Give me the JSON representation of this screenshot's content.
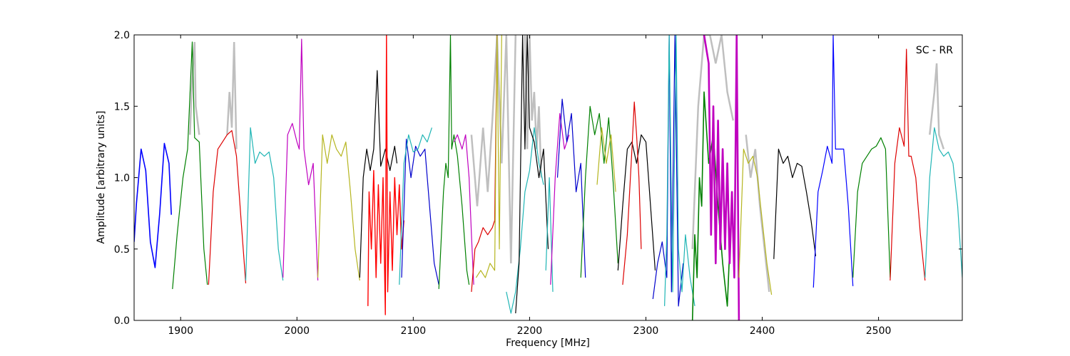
{
  "chart_data": {
    "type": "line",
    "title": "",
    "xlabel": "Frequency [MHz]",
    "ylabel": "Amplitude [arbitrary units]",
    "xlim": [
      1860,
      2572
    ],
    "ylim": [
      0,
      2.0
    ],
    "xticks": [
      1900,
      2000,
      2100,
      2200,
      2300,
      2400,
      2500
    ],
    "yticks": [
      0.0,
      0.5,
      1.0,
      1.5,
      2.0
    ],
    "xtick_labels": [
      "1900",
      "2000",
      "2100",
      "2200",
      "2300",
      "2400",
      "2500"
    ],
    "ytick_labels": [
      "0.0",
      "0.5",
      "1.0",
      "1.5",
      "2.0"
    ],
    "annotation": "SC - RR",
    "grid": false,
    "legend": "none",
    "reference_color": "#bfbfbf",
    "series": [
      {
        "color": "#0000ff",
        "lw": 1.6,
        "x": [
          1860,
          1862,
          1866,
          1870,
          1874,
          1878,
          1882,
          1886,
          1890,
          1892
        ],
        "y": [
          0.55,
          0.82,
          1.2,
          1.05,
          0.55,
          0.37,
          0.75,
          1.24,
          1.1,
          0.74
        ]
      },
      {
        "color": "#008000",
        "x": [
          1893,
          1897,
          1902,
          1906,
          1910,
          1912,
          1916,
          1920,
          1923
        ],
        "y": [
          0.22,
          0.6,
          1.0,
          1.2,
          1.95,
          1.28,
          1.25,
          0.5,
          0.25
        ]
      },
      {
        "color": "#dd0000",
        "x": [
          1924,
          1928,
          1932,
          1936,
          1940,
          1944,
          1948,
          1952,
          1956
        ],
        "y": [
          0.25,
          0.9,
          1.2,
          1.25,
          1.3,
          1.33,
          1.15,
          0.7,
          0.26
        ]
      },
      {
        "color": "#1fb5b5",
        "x": [
          1956,
          1960,
          1964,
          1968,
          1972,
          1976,
          1980,
          1984,
          1988
        ],
        "y": [
          0.28,
          1.35,
          1.1,
          1.18,
          1.15,
          1.18,
          1.0,
          0.5,
          0.28
        ]
      },
      {
        "color": "#bf00bf",
        "x": [
          1988,
          1992,
          1996,
          2000,
          2002,
          2004,
          2006,
          2010,
          2014,
          2018
        ],
        "y": [
          0.3,
          1.3,
          1.38,
          1.25,
          1.2,
          1.97,
          1.2,
          0.95,
          1.1,
          0.28
        ]
      },
      {
        "color": "#b5b51f",
        "x": [
          2018,
          2022,
          2026,
          2030,
          2034,
          2038,
          2042,
          2046,
          2050,
          2054
        ],
        "y": [
          0.3,
          1.3,
          1.1,
          1.3,
          1.2,
          1.15,
          1.25,
          0.9,
          0.5,
          0.28
        ]
      },
      {
        "color": "#000000",
        "x": [
          2054,
          2057,
          2060,
          2063,
          2066,
          2069,
          2072,
          2076,
          2080,
          2084,
          2086
        ],
        "y": [
          0.3,
          1.0,
          1.2,
          1.05,
          1.2,
          1.75,
          1.08,
          1.2,
          1.05,
          1.22,
          1.1
        ]
      },
      {
        "color": "#ff0000",
        "lw": 1.4,
        "x": [
          2061,
          2062,
          2064,
          2066,
          2068,
          2070,
          2072,
          2074,
          2076,
          2077,
          2078,
          2080,
          2082,
          2084,
          2086,
          2088,
          2090,
          2092
        ],
        "y": [
          0.1,
          0.9,
          0.5,
          1.05,
          0.3,
          0.95,
          0.4,
          1.0,
          0.04,
          2.0,
          0.2,
          0.9,
          0.35,
          1.0,
          0.6,
          0.95,
          0.5,
          0.7
        ]
      },
      {
        "color": "#0000cc",
        "x": [
          2090,
          2094,
          2098,
          2102,
          2106,
          2110,
          2114,
          2118,
          2122
        ],
        "y": [
          0.3,
          1.27,
          1.0,
          1.22,
          1.15,
          1.2,
          0.8,
          0.4,
          0.25
        ]
      },
      {
        "color": "#1fb5b5",
        "x": [
          2088,
          2092,
          2096,
          2100,
          2104,
          2108,
          2112,
          2116
        ],
        "y": [
          0.25,
          1.1,
          1.3,
          1.18,
          1.2,
          1.3,
          1.25,
          1.35
        ]
      },
      {
        "color": "#008000",
        "x": [
          2122,
          2126,
          2128,
          2130,
          2132,
          2133,
          2135,
          2138,
          2142,
          2146,
          2148
        ],
        "y": [
          0.22,
          0.9,
          1.1,
          1.0,
          2.0,
          1.2,
          1.3,
          1.15,
          0.8,
          0.35,
          0.25
        ]
      },
      {
        "color": "#bf00bf",
        "x": [
          2135,
          2138,
          2142,
          2145,
          2148,
          2150,
          2152
        ],
        "y": [
          1.25,
          1.3,
          1.2,
          1.3,
          1.0,
          0.6,
          0.25
        ]
      },
      {
        "color": "#dd0000",
        "x": [
          2150,
          2153,
          2156,
          2160,
          2164,
          2168,
          2170,
          2172
        ],
        "y": [
          0.2,
          0.5,
          0.55,
          0.65,
          0.6,
          0.65,
          0.7,
          2.0
        ]
      },
      {
        "color": "#b5b51f",
        "x": [
          2154,
          2158,
          2162,
          2166,
          2170,
          2172,
          2174,
          2176
        ],
        "y": [
          0.3,
          0.35,
          0.3,
          0.4,
          0.35,
          2.0,
          0.5,
          2.0
        ]
      },
      {
        "color": "#1fb5b5",
        "x": [
          2180,
          2184,
          2188,
          2192,
          2196,
          2200,
          2204,
          2208,
          2212
        ],
        "y": [
          0.2,
          0.05,
          0.2,
          0.5,
          0.9,
          1.05,
          1.35,
          1.1,
          0.95
        ]
      },
      {
        "color": "#000000",
        "x": [
          2188,
          2191,
          2194,
          2196,
          2198,
          2200,
          2204,
          2208,
          2212,
          2216
        ],
        "y": [
          0.05,
          0.4,
          2.0,
          1.2,
          2.0,
          1.35,
          1.25,
          1.0,
          1.2,
          0.5
        ]
      },
      {
        "color": "#1fb5b5",
        "x": [
          2214,
          2217,
          2220
        ],
        "y": [
          0.35,
          1.0,
          0.2
        ]
      },
      {
        "color": "#bf00bf",
        "x": [
          2218,
          2222,
          2226,
          2230,
          2234
        ],
        "y": [
          0.25,
          1.0,
          1.45,
          1.2,
          1.3
        ]
      },
      {
        "color": "#0000cc",
        "x": [
          2224,
          2228,
          2232,
          2236,
          2240,
          2244,
          2248
        ],
        "y": [
          1.0,
          1.55,
          1.25,
          1.45,
          0.9,
          1.1,
          0.3
        ]
      },
      {
        "color": "#008000",
        "x": [
          2244,
          2248,
          2252,
          2256,
          2260,
          2264,
          2268,
          2272,
          2276
        ],
        "y": [
          0.3,
          1.0,
          1.5,
          1.3,
          1.45,
          1.1,
          1.42,
          0.95,
          0.4
        ]
      },
      {
        "color": "#b5b51f",
        "x": [
          2258,
          2262,
          2266,
          2270,
          2274
        ],
        "y": [
          0.95,
          1.35,
          1.1,
          1.3,
          0.9
        ]
      },
      {
        "color": "#000000",
        "x": [
          2276,
          2280,
          2284,
          2288,
          2292,
          2296,
          2300,
          2304,
          2308
        ],
        "y": [
          0.35,
          0.8,
          1.2,
          1.25,
          1.1,
          1.3,
          1.25,
          0.8,
          0.35
        ]
      },
      {
        "color": "#dd0000",
        "x": [
          2280,
          2284,
          2288,
          2290,
          2292,
          2294,
          2296
        ],
        "y": [
          0.25,
          0.6,
          1.2,
          1.53,
          1.3,
          1.0,
          0.5
        ]
      },
      {
        "color": "#0000cc",
        "x": [
          2306,
          2310,
          2314,
          2318,
          2320,
          2322,
          2325,
          2328,
          2332
        ],
        "y": [
          0.15,
          0.4,
          0.55,
          0.3,
          2.0,
          0.2,
          2.0,
          0.1,
          0.4
        ]
      },
      {
        "color": "#1fb5b5",
        "x": [
          2316,
          2318,
          2320,
          2323,
          2326,
          2328,
          2331,
          2334,
          2338,
          2342
        ],
        "y": [
          0.1,
          0.6,
          2.0,
          0.2,
          2.0,
          0.5,
          0.2,
          0.6,
          0.3,
          0.1
        ]
      },
      {
        "color": "#008000",
        "lw": 1.6,
        "x": [
          2340,
          2342,
          2344,
          2346,
          2348,
          2350,
          2354,
          2358,
          2362,
          2366,
          2370,
          2372
        ],
        "y": [
          0.0,
          0.6,
          0.3,
          1.0,
          0.8,
          1.6,
          1.1,
          1.3,
          0.8,
          0.4,
          0.1,
          0.5
        ]
      },
      {
        "color": "#bf00bf",
        "lw": 2.6,
        "x": [
          2350,
          2354,
          2356,
          2358,
          2360,
          2362,
          2364,
          2366,
          2368,
          2370,
          2372,
          2374,
          2376,
          2378,
          2380
        ],
        "y": [
          2.0,
          1.8,
          0.6,
          1.5,
          0.4,
          1.4,
          0.5,
          1.2,
          0.5,
          1.1,
          0.4,
          0.9,
          0.3,
          2.0,
          0.0
        ]
      },
      {
        "color": "#b5b51f",
        "x": [
          2380,
          2384,
          2388,
          2392,
          2396,
          2400,
          2404,
          2408
        ],
        "y": [
          0.3,
          1.2,
          1.1,
          1.15,
          1.0,
          0.7,
          0.4,
          0.18
        ]
      },
      {
        "color": "#000000",
        "x": [
          2410,
          2414,
          2418,
          2422,
          2426,
          2430,
          2434,
          2438,
          2442,
          2446
        ],
        "y": [
          0.43,
          1.2,
          1.1,
          1.15,
          1.0,
          1.1,
          1.08,
          0.9,
          0.7,
          0.45
        ]
      },
      {
        "color": "#0000ff",
        "x": [
          2444,
          2448,
          2452,
          2456,
          2460,
          2461,
          2463,
          2466,
          2470,
          2474,
          2478
        ],
        "y": [
          0.23,
          0.9,
          1.05,
          1.22,
          1.1,
          2.0,
          1.2,
          1.2,
          1.2,
          0.8,
          0.24
        ]
      },
      {
        "color": "#008000",
        "x": [
          2478,
          2482,
          2486,
          2490,
          2494,
          2498,
          2502,
          2506,
          2510
        ],
        "y": [
          0.3,
          0.9,
          1.1,
          1.15,
          1.2,
          1.22,
          1.28,
          1.2,
          0.3
        ]
      },
      {
        "color": "#dd0000",
        "x": [
          2510,
          2514,
          2518,
          2522,
          2524,
          2526,
          2528,
          2532,
          2536,
          2540
        ],
        "y": [
          0.28,
          1.1,
          1.35,
          1.22,
          1.9,
          1.15,
          1.15,
          1.0,
          0.6,
          0.28
        ]
      },
      {
        "color": "#1fb5b5",
        "x": [
          2540,
          2544,
          2548,
          2552,
          2556,
          2560,
          2564,
          2568,
          2572
        ],
        "y": [
          0.3,
          1.0,
          1.35,
          1.2,
          1.15,
          1.18,
          1.1,
          0.8,
          0.3
        ]
      }
    ],
    "reference_spikes": [
      {
        "x": [
          1908,
          1910,
          1912,
          1913,
          1916
        ],
        "y": [
          1.3,
          1.7,
          1.95,
          1.5,
          1.3
        ]
      },
      {
        "x": [
          1940,
          1942,
          1944,
          1946,
          1948
        ],
        "y": [
          1.3,
          1.6,
          1.35,
          1.95,
          1.2
        ]
      },
      {
        "x": [
          2150,
          2155,
          2160,
          2164,
          2168,
          2172,
          2176,
          2180,
          2184,
          2188
        ],
        "y": [
          1.3,
          0.8,
          1.35,
          0.9,
          1.4,
          2.0,
          1.1,
          2.0,
          0.4,
          2.0
        ]
      },
      {
        "x": [
          2196,
          2198,
          2200,
          2202,
          2204,
          2206,
          2208,
          2210
        ],
        "y": [
          2.0,
          1.2,
          2.0,
          1.4,
          1.6,
          1.2,
          1.5,
          1.0
        ]
      },
      {
        "x": [
          2340,
          2345,
          2350,
          2355,
          2360,
          2365,
          2370,
          2375
        ],
        "y": [
          0.5,
          1.5,
          2.0,
          2.0,
          1.8,
          2.0,
          1.6,
          1.4
        ]
      },
      {
        "x": [
          2386,
          2390,
          2394,
          2398,
          2402,
          2406
        ],
        "y": [
          1.3,
          1.0,
          1.2,
          0.8,
          0.5,
          0.2
        ]
      },
      {
        "x": [
          2544,
          2548,
          2550,
          2552,
          2556
        ],
        "y": [
          1.3,
          1.6,
          1.8,
          1.3,
          1.2
        ]
      }
    ]
  }
}
